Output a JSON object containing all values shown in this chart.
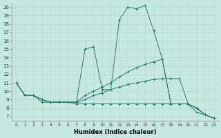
{
  "xlabel": "Humidex (Indice chaleur)",
  "bg_color": "#c5e8e2",
  "line_color": "#2a7a6a",
  "xlim": [
    -0.5,
    23.5
  ],
  "ylim": [
    6.5,
    20.5
  ],
  "xticks": [
    0,
    1,
    2,
    3,
    4,
    5,
    6,
    7,
    8,
    9,
    10,
    11,
    12,
    13,
    14,
    15,
    16,
    17,
    18,
    19,
    20,
    21,
    22,
    23
  ],
  "yticks": [
    7,
    8,
    9,
    10,
    11,
    12,
    13,
    14,
    15,
    16,
    17,
    18,
    19,
    20
  ],
  "lines": [
    {
      "x": [
        0,
        1,
        2,
        3,
        4,
        5,
        6,
        7,
        8,
        9,
        10,
        11,
        12,
        13,
        14,
        15,
        16,
        17,
        18,
        19,
        20,
        21,
        22,
        23
      ],
      "y": [
        11,
        9.5,
        9.5,
        9.0,
        8.7,
        8.7,
        8.7,
        8.7,
        15.0,
        15.3,
        10.2,
        10.2,
        18.5,
        20.0,
        19.8,
        20.2,
        17.2,
        13.8,
        8.5,
        8.5,
        8.5,
        8.0,
        7.2,
        6.8
      ]
    },
    {
      "x": [
        0,
        1,
        2,
        3,
        4,
        5,
        6,
        7,
        8,
        9,
        10,
        11,
        12,
        13,
        14,
        15,
        16,
        17,
        18,
        19,
        20,
        21,
        22,
        23
      ],
      "y": [
        11,
        9.5,
        9.5,
        9.0,
        8.7,
        8.7,
        8.7,
        8.7,
        9.5,
        10.0,
        10.5,
        11.0,
        11.7,
        12.3,
        12.8,
        13.2,
        13.5,
        13.8,
        8.5,
        8.5,
        8.5,
        8.0,
        7.2,
        6.8
      ]
    },
    {
      "x": [
        0,
        1,
        2,
        3,
        4,
        5,
        6,
        7,
        8,
        9,
        10,
        11,
        12,
        13,
        14,
        15,
        16,
        17,
        18,
        19,
        20,
        21,
        22,
        23
      ],
      "y": [
        11,
        9.5,
        9.5,
        9.0,
        8.7,
        8.7,
        8.7,
        8.7,
        9.0,
        9.5,
        9.8,
        10.2,
        10.5,
        10.8,
        11.0,
        11.2,
        11.4,
        11.5,
        11.5,
        11.5,
        8.5,
        8.0,
        7.2,
        6.8
      ]
    },
    {
      "x": [
        0,
        1,
        2,
        3,
        4,
        5,
        6,
        7,
        8,
        9,
        10,
        11,
        12,
        13,
        14,
        15,
        16,
        17,
        18,
        19,
        20,
        21,
        22,
        23
      ],
      "y": [
        11,
        9.5,
        9.5,
        8.7,
        8.7,
        8.7,
        8.7,
        8.5,
        8.5,
        8.5,
        8.5,
        8.5,
        8.5,
        8.5,
        8.5,
        8.5,
        8.5,
        8.5,
        8.5,
        8.5,
        8.5,
        7.5,
        7.2,
        6.8
      ]
    }
  ]
}
